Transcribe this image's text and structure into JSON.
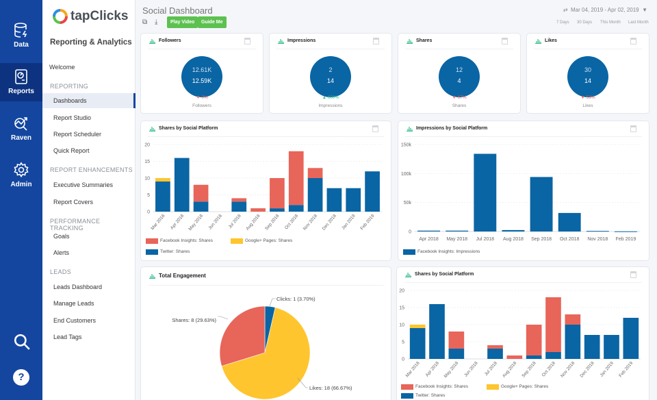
{
  "rail": {
    "items": [
      {
        "label": "Data",
        "icon": "database-icon"
      },
      {
        "label": "Reports",
        "icon": "report-icon"
      },
      {
        "label": "Raven",
        "icon": "raven-icon"
      },
      {
        "label": "Admin",
        "icon": "gear-icon"
      }
    ],
    "bottom": [
      "search-icon",
      "help-icon"
    ]
  },
  "nav": {
    "brand": "tapClicks",
    "title": "Reporting & Analytics",
    "welcome": "Welcome",
    "sections": [
      {
        "label": "REPORTING",
        "items": [
          "Dashboards",
          "Report Studio",
          "Report Scheduler",
          "Quick Report"
        ]
      },
      {
        "label": "REPORT ENHANCEMENTS",
        "items": [
          "Executive Summaries",
          "Report Covers"
        ]
      },
      {
        "label": "PERFORMANCE TRACKING",
        "items": [
          "Goals",
          "Alerts"
        ]
      },
      {
        "label": "LEADS",
        "items": [
          "Leads Dashboard",
          "Manage Leads",
          "End Customers",
          "Lead Tags"
        ]
      }
    ],
    "active": "Dashboards"
  },
  "header": {
    "title": "Social Dashboard",
    "play_video": "Play Video",
    "guide_me": "Guide Me",
    "date_range": "Mar 04, 2019 - Apr 02, 2019",
    "quick_ranges": [
      "7 Days",
      "30 Days",
      "This Month",
      "Last Month"
    ]
  },
  "kpis": [
    {
      "title": "Followers",
      "current": "12.61K",
      "previous": "12.59K",
      "delta": "0%",
      "direction": "down",
      "label": "Followers"
    },
    {
      "title": "Impressions",
      "current": "2",
      "previous": "14",
      "delta": "600%",
      "direction": "up",
      "label": "Impressions"
    },
    {
      "title": "Shares",
      "current": "12",
      "previous": "4",
      "delta": "67%",
      "direction": "down",
      "label": "Shares"
    },
    {
      "title": "Likes",
      "current": "30",
      "previous": "14",
      "delta": "53%",
      "direction": "down",
      "label": "Likes"
    }
  ],
  "colors": {
    "facebook": "#e8655a",
    "google": "#fec52e",
    "twitter": "#0a65a4",
    "up": "#3cbf8f",
    "down": "#e8655a",
    "accent": "#5cc14f"
  },
  "chart_data": [
    {
      "type": "bar",
      "stacked": true,
      "title": "Shares by Social Platform",
      "categories": [
        "Mar 2018",
        "Apr 2018",
        "May 2018",
        "Jun 2018",
        "Jul 2018",
        "Aug 2018",
        "Sep 2018",
        "Oct 2018",
        "Nov 2018",
        "Dec 2018",
        "Jan 2019",
        "Feb 2019"
      ],
      "series": [
        {
          "name": "Twitter: Shares",
          "values": [
            9,
            16,
            3,
            0,
            3,
            0,
            1,
            2,
            10,
            7,
            7,
            12
          ]
        },
        {
          "name": "Facebook Insights: Shares",
          "values": [
            0,
            0,
            5,
            0,
            1,
            1,
            9,
            16,
            3,
            0,
            0,
            0
          ]
        },
        {
          "name": "Google+ Pages: Shares",
          "values": [
            1,
            0,
            0,
            0,
            0,
            0,
            0,
            0,
            0,
            0,
            0,
            0
          ]
        }
      ],
      "ylim": [
        0,
        20
      ],
      "yticks": [
        "0",
        "5",
        "10",
        "15",
        "20"
      ],
      "grid": true,
      "legend": "bottom"
    },
    {
      "type": "bar",
      "title": "Impressions by Social Platform",
      "categories": [
        "Apr 2018",
        "May 2018",
        "Jul 2018",
        "Aug 2018",
        "Sep 2018",
        "Oct 2018",
        "Nov 2018",
        "Feb 2019"
      ],
      "series": [
        {
          "name": "Facebook Insights: Impressions",
          "values": [
            1500,
            1500,
            134000,
            2500,
            94000,
            32000,
            1000,
            300
          ]
        }
      ],
      "ylim": [
        0,
        150000
      ],
      "yticks": [
        "0",
        "50k",
        "100k",
        "150k"
      ],
      "grid": true,
      "legend": "bottom"
    },
    {
      "type": "pie",
      "title": "Total Engagement",
      "slices": [
        {
          "label": "Clicks: 1 (3.70%)",
          "value": 1
        },
        {
          "label": "Likes: 18 (66.67%)",
          "value": 18
        },
        {
          "label": "Shares: 8 (29.63%)",
          "value": 8
        }
      ]
    },
    {
      "type": "bar",
      "stacked": true,
      "title": "Shares by Social Platform",
      "categories": [
        "Mar 2018",
        "Apr 2018",
        "May 2018",
        "Jun 2018",
        "Jul 2018",
        "Aug 2018",
        "Sep 2018",
        "Oct 2018",
        "Nov 2018",
        "Dec 2018",
        "Jan 2019",
        "Feb 2019"
      ],
      "series": [
        {
          "name": "Twitter: Shares",
          "values": [
            9,
            16,
            3,
            0,
            3,
            0,
            1,
            2,
            10,
            7,
            7,
            12
          ]
        },
        {
          "name": "Facebook Insights: Shares",
          "values": [
            0,
            0,
            5,
            0,
            1,
            1,
            9,
            16,
            3,
            0,
            0,
            0
          ]
        },
        {
          "name": "Google+ Pages: Shares",
          "values": [
            1,
            0,
            0,
            0,
            0,
            0,
            0,
            0,
            0,
            0,
            0,
            0
          ]
        }
      ],
      "ylim": [
        0,
        20
      ],
      "yticks": [
        "0",
        "5",
        "10",
        "15",
        "20"
      ],
      "grid": true,
      "legend": "bottom"
    }
  ]
}
